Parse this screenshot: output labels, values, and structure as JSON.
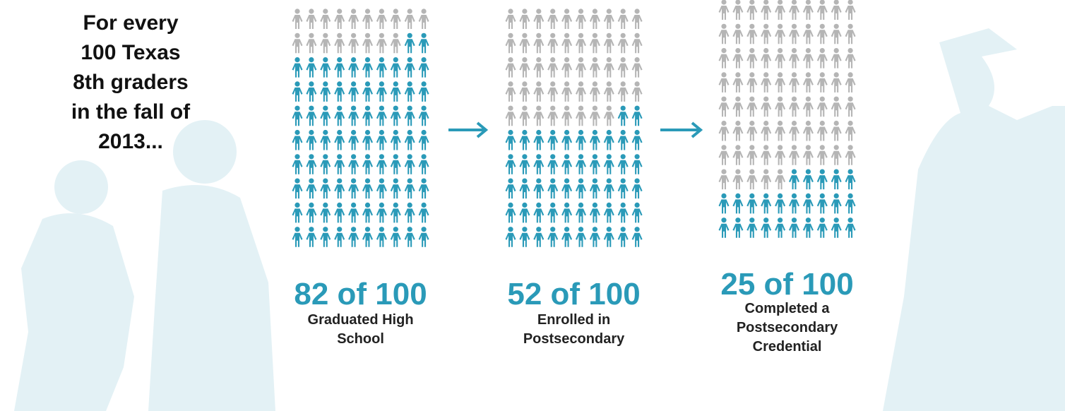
{
  "chart_data": {
    "type": "pictograph",
    "title": "For every 100 Texas 8th graders in the fall of 2013...",
    "total": 100,
    "categories": [
      "Graduated High School",
      "Enrolled in Postsecondary",
      "Completed a Postsecondary Credential"
    ],
    "values": [
      82,
      52,
      25
    ],
    "value_labels": [
      "82 of 100",
      "52 of 100",
      "25 of 100"
    ],
    "color": "#2a9ab8",
    "rest_color": "#b5b5b5"
  }
}
